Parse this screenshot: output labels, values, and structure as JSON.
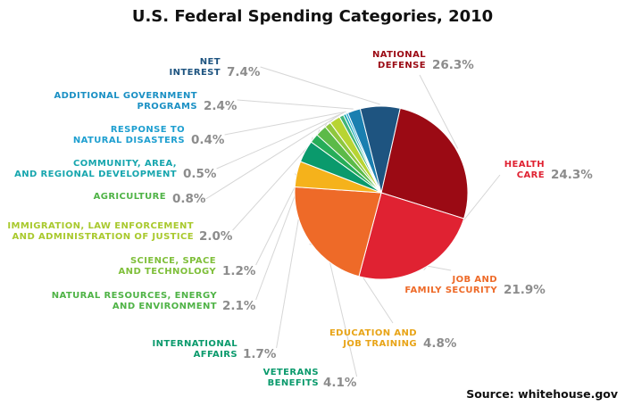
{
  "chart_data": {
    "type": "pie",
    "title": "U.S. Federal Spending Categories, 2010",
    "source": "Source: whitehouse.gov",
    "slices": [
      {
        "name": "NATIONAL DEFENSE",
        "lines": [
          "NATIONAL",
          "DEFENSE"
        ],
        "value": 26.3,
        "label": "26.3%",
        "color": "#9b0a14"
      },
      {
        "name": "HEALTH CARE",
        "lines": [
          "HEALTH",
          "CARE"
        ],
        "value": 24.3,
        "label": "24.3%",
        "color": "#e02232"
      },
      {
        "name": "JOB AND FAMILY SECURITY",
        "lines": [
          "JOB AND",
          "FAMILY SECURITY"
        ],
        "value": 21.9,
        "label": "21.9%",
        "color": "#ee6a28"
      },
      {
        "name": "EDUCATION AND JOB TRAINING",
        "lines": [
          "EDUCATION AND",
          "JOB TRAINING"
        ],
        "value": 4.8,
        "label": "4.8%",
        "color": "#f5b21b"
      },
      {
        "name": "VETERANS BENEFITS",
        "lines": [
          "VETERANS",
          "BENEFITS"
        ],
        "value": 4.1,
        "label": "4.1%",
        "color": "#0a9a6c"
      },
      {
        "name": "INTERNATIONAL AFFAIRS",
        "lines": [
          "INTERNATIONAL",
          "AFFAIRS"
        ],
        "value": 1.7,
        "label": "1.7%",
        "color": "#27ad58"
      },
      {
        "name": "NATURAL RESOURCES, ENERGY AND ENVIRONMENT",
        "lines": [
          "NATURAL RESOURCES, ENERGY",
          "AND ENVIRONMENT"
        ],
        "value": 2.1,
        "label": "2.1%",
        "color": "#5cba48"
      },
      {
        "name": "SCIENCE, SPACE AND TECHNOLOGY",
        "lines": [
          "SCIENCE, SPACE",
          "AND TECHNOLOGY"
        ],
        "value": 1.2,
        "label": "1.2%",
        "color": "#8ec73e"
      },
      {
        "name": "IMMIGRATION, LAW ENFORCEMENT AND ADMINISTRATION OF JUSTICE",
        "lines": [
          "IMMIGRATION, LAW ENFORCEMENT",
          "AND ADMINISTRATION OF JUSTICE"
        ],
        "value": 2.0,
        "label": "2.0%",
        "color": "#b8d433"
      },
      {
        "name": "AGRICULTURE",
        "lines": [
          "AGRICULTURE"
        ],
        "value": 0.8,
        "label": "0.8%",
        "color": "#41b57a"
      },
      {
        "name": "COMMUNITY, AREA, AND REGIONAL DEVELOPMENT",
        "lines": [
          "COMMUNITY, AREA,",
          "AND REGIONAL DEVELOPMENT"
        ],
        "value": 0.5,
        "label": "0.5%",
        "color": "#1aabb2"
      },
      {
        "name": "RESPONSE TO NATURAL DISASTERS",
        "lines": [
          "RESPONSE TO",
          "NATURAL DISASTERS"
        ],
        "value": 0.4,
        "label": "0.4%",
        "color": "#1e9fd0"
      },
      {
        "name": "ADDITIONAL GOVERNMENT PROGRAMS",
        "lines": [
          "ADDITIONAL GOVERNMENT",
          "PROGRAMS"
        ],
        "value": 2.4,
        "label": "2.4%",
        "color": "#1a7fb0"
      },
      {
        "name": "NET INTEREST",
        "lines": [
          "NET",
          "INTEREST"
        ],
        "value": 7.4,
        "label": "7.4%",
        "color": "#1e5480"
      }
    ],
    "label_colors": {
      "NATIONAL DEFENSE": "#9b0a14",
      "HEALTH CARE": "#e02232",
      "JOB AND FAMILY SECURITY": "#ee6a28",
      "EDUCATION AND JOB TRAINING": "#e8a417",
      "VETERANS BENEFITS": "#0a9a6c",
      "INTERNATIONAL AFFAIRS": "#0a9a6c",
      "NATURAL RESOURCES, ENERGY AND ENVIRONMENT": "#4fb346",
      "SCIENCE, SPACE AND TECHNOLOGY": "#7fbf3a",
      "IMMIGRATION, LAW ENFORCEMENT AND ADMINISTRATION OF JUSTICE": "#a9c92d",
      "AGRICULTURE": "#4fb346",
      "COMMUNITY, AREA, AND REGIONAL DEVELOPMENT": "#17a6ae",
      "RESPONSE TO NATURAL DISASTERS": "#1e9fd0",
      "ADDITIONAL GOVERNMENT PROGRAMS": "#1a90c4",
      "NET INTEREST": "#1e5480"
    }
  }
}
